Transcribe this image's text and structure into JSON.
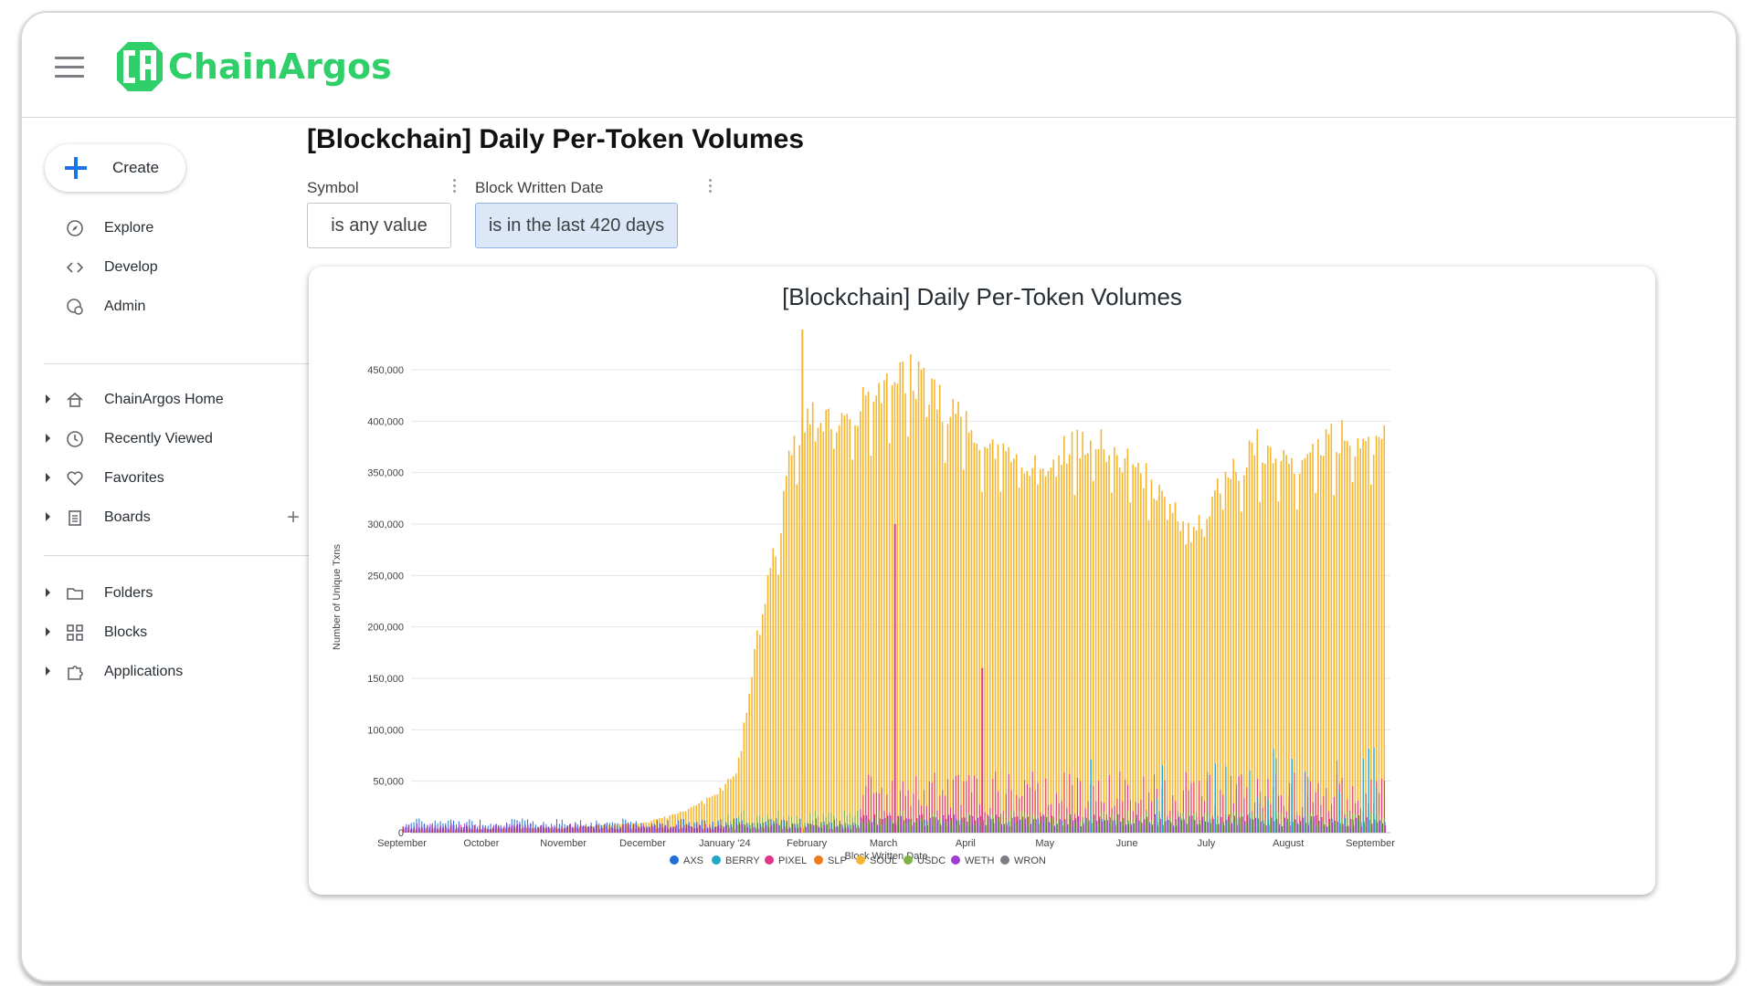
{
  "app": {
    "brand": "ChainArgos",
    "brand_color": "#2fcf6a"
  },
  "sidebar": {
    "create_label": "Create",
    "primary_items": [
      {
        "label": "Explore",
        "icon": "compass-icon"
      },
      {
        "label": "Develop",
        "icon": "code-icon"
      },
      {
        "label": "Admin",
        "icon": "admin-gear-icon"
      }
    ],
    "tree_items": [
      {
        "label": "ChainArgos Home",
        "icon": "home-icon"
      },
      {
        "label": "Recently Viewed",
        "icon": "clock-icon"
      },
      {
        "label": "Favorites",
        "icon": "heart-icon"
      },
      {
        "label": "Boards",
        "icon": "clipboard-icon"
      }
    ],
    "content_items": [
      {
        "label": "Folders",
        "icon": "folder-icon"
      },
      {
        "label": "Blocks",
        "icon": "blocks-icon"
      },
      {
        "label": "Applications",
        "icon": "puzzle-icon"
      }
    ]
  },
  "page": {
    "title": "[Blockchain] Daily Per-Token Volumes"
  },
  "filters": [
    {
      "label": "Symbol",
      "value": "is any value",
      "active": false
    },
    {
      "label": "Block Written Date",
      "value": "is in the last 420 days",
      "active": true
    }
  ],
  "chart_data": {
    "type": "bar",
    "title": "[Blockchain] Daily Per-Token Volumes",
    "xlabel": "Block Written Date",
    "ylabel": "Number of Unique Txns",
    "ylim": [
      0,
      450000
    ],
    "y_ticks": [
      "0",
      "50,000",
      "100,000",
      "150,000",
      "200,000",
      "250,000",
      "300,000",
      "350,000",
      "400,000",
      "450,000"
    ],
    "y_tick_values": [
      0,
      50000,
      100000,
      150000,
      200000,
      250000,
      300000,
      350000,
      400000,
      450000
    ],
    "x_ticks": [
      "September",
      "October",
      "November",
      "December",
      "January '24",
      "February",
      "March",
      "April",
      "May",
      "June",
      "July",
      "August",
      "September"
    ],
    "x_tick_months": [
      [
        2023,
        9
      ],
      [
        2023,
        10
      ],
      [
        2023,
        11
      ],
      [
        2023,
        12
      ],
      [
        2024,
        1
      ],
      [
        2024,
        2
      ],
      [
        2024,
        3
      ],
      [
        2024,
        4
      ],
      [
        2024,
        5
      ],
      [
        2024,
        6
      ],
      [
        2024,
        7
      ],
      [
        2024,
        8
      ],
      [
        2024,
        9
      ]
    ],
    "grid": true,
    "legend_position": "bottom",
    "series": [
      {
        "name": "AXS",
        "color": "#1f6fd6"
      },
      {
        "name": "BERRY",
        "color": "#22a7c4"
      },
      {
        "name": "PIXEL",
        "color": "#e0358a"
      },
      {
        "name": "SLP",
        "color": "#f07a1a"
      },
      {
        "name": "SOUL",
        "color": "#f6b52f"
      },
      {
        "name": "USDC",
        "color": "#7cb342"
      },
      {
        "name": "WETH",
        "color": "#a23bd1"
      },
      {
        "name": "WRON",
        "color": "#7b7f83"
      }
    ],
    "soul_weekly": [
      {
        "date": "2023-09-01",
        "value": 2000
      },
      {
        "date": "2023-11-01",
        "value": 5000
      },
      {
        "date": "2023-12-01",
        "value": 10000
      },
      {
        "date": "2023-12-15",
        "value": 20000
      },
      {
        "date": "2023-12-29",
        "value": 40000
      },
      {
        "date": "2024-01-05",
        "value": 60000
      },
      {
        "date": "2024-01-10",
        "value": 140000
      },
      {
        "date": "2024-01-13",
        "value": 200000
      },
      {
        "date": "2024-01-17",
        "value": 250000
      },
      {
        "date": "2024-01-22",
        "value": 310000
      },
      {
        "date": "2024-01-26",
        "value": 390000
      },
      {
        "date": "2024-02-01",
        "value": 420000
      },
      {
        "date": "2024-02-15",
        "value": 405000
      },
      {
        "date": "2024-02-29",
        "value": 445000
      },
      {
        "date": "2024-03-10",
        "value": 460000
      },
      {
        "date": "2024-03-20",
        "value": 435000
      },
      {
        "date": "2024-04-01",
        "value": 410000
      },
      {
        "date": "2024-04-15",
        "value": 375000
      },
      {
        "date": "2024-04-30",
        "value": 370000
      },
      {
        "date": "2024-05-10",
        "value": 385000
      },
      {
        "date": "2024-05-25",
        "value": 385000
      },
      {
        "date": "2024-06-05",
        "value": 360000
      },
      {
        "date": "2024-06-15",
        "value": 335000
      },
      {
        "date": "2024-06-25",
        "value": 300000
      },
      {
        "date": "2024-07-05",
        "value": 340000
      },
      {
        "date": "2024-07-20",
        "value": 385000
      },
      {
        "date": "2024-08-05",
        "value": 370000
      },
      {
        "date": "2024-08-20",
        "value": 395000
      },
      {
        "date": "2024-09-01",
        "value": 390000
      }
    ],
    "annotations_peaks": [
      {
        "series": "SOUL",
        "date": "2024-01-30",
        "value": 489000
      },
      {
        "series": "PIXEL",
        "date": "2024-03-05",
        "value": 300000
      },
      {
        "series": "PIXEL",
        "date": "2024-04-07",
        "value": 160000
      }
    ]
  }
}
